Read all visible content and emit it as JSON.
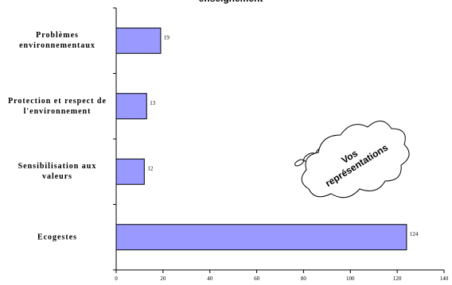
{
  "chart_data": {
    "type": "barh",
    "title": "enseignement",
    "categories": [
      "Problèmes environnementaux",
      "Protection et respect de l'environnement",
      "Sensibilisation aux valeurs",
      "Ecogestes"
    ],
    "values": [
      19,
      13,
      12,
      124
    ],
    "color": "#9999ff",
    "xlim": [
      0,
      140
    ],
    "xticks": [
      0,
      20,
      40,
      60,
      80,
      100,
      120,
      140
    ],
    "annotation": [
      "Vos",
      "représentations"
    ]
  }
}
